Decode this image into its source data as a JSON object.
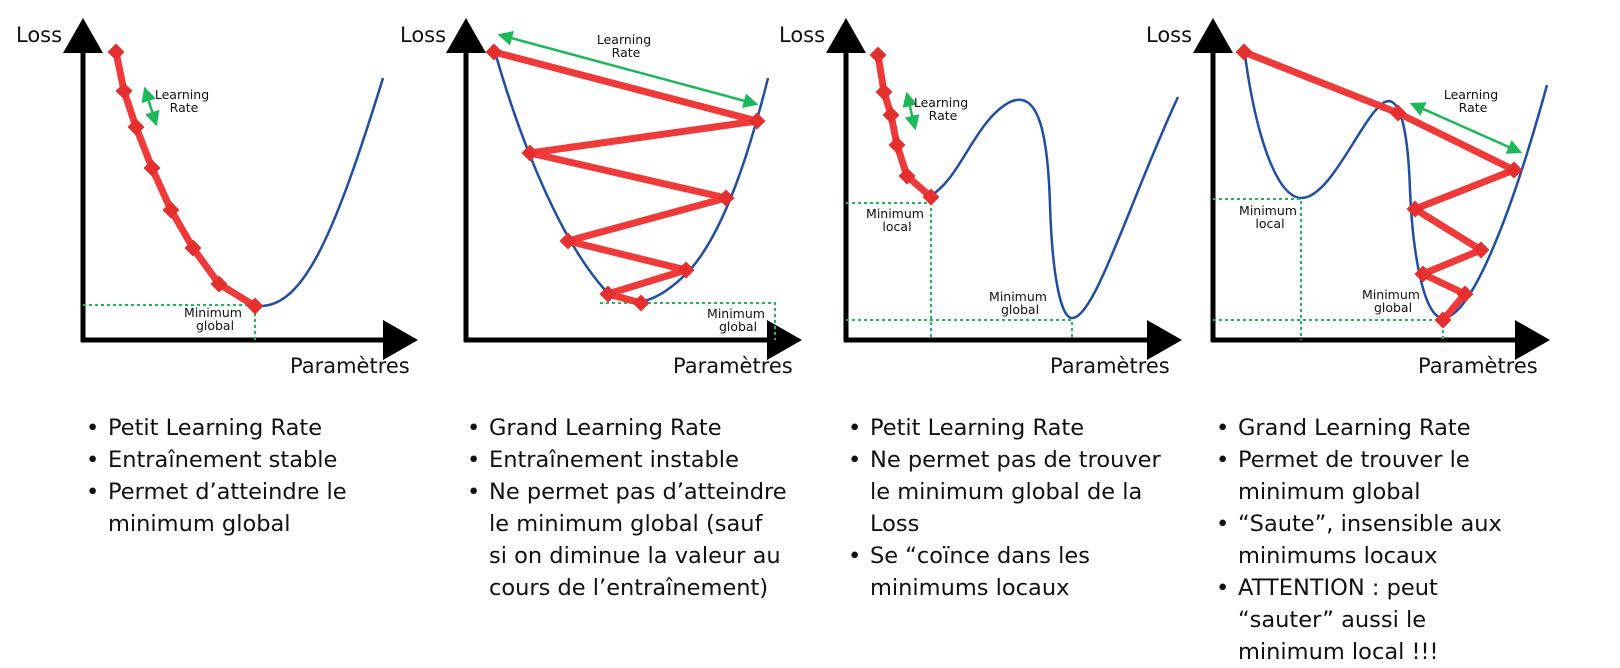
{
  "colors": {
    "axis": "#000000",
    "curve": "#1f4ea3",
    "path": "#f03a3a",
    "marker": "#e52f2f",
    "arrow": "#1cb85a",
    "guide": "#1cb85a"
  },
  "panels": [
    {
      "axis": {
        "y_label": "Loss",
        "x_label": "Paramètres"
      },
      "annotations": {
        "learning_rate": [
          "Learning",
          "Rate"
        ],
        "minimum_global": [
          "Minimum",
          "global"
        ]
      },
      "bullets": [
        "Petit Learning Rate",
        "Entraînement stable",
        "Permet d’atteindre le minimum global"
      ]
    },
    {
      "axis": {
        "y_label": "Loss",
        "x_label": "Paramètres"
      },
      "annotations": {
        "learning_rate": [
          "Learning",
          "Rate"
        ],
        "minimum_global": [
          "Minimum",
          "global"
        ]
      },
      "bullets": [
        "Grand Learning Rate",
        "Entraînement instable",
        "Ne permet pas d’atteindre le minimum global (sauf si on diminue la valeur au cours de l’entraînement)"
      ]
    },
    {
      "axis": {
        "y_label": "Loss",
        "x_label": "Paramètres"
      },
      "annotations": {
        "learning_rate": [
          "Learning",
          "Rate"
        ],
        "minimum_local": [
          "Minimum",
          "local"
        ],
        "minimum_global": [
          "Minimum",
          "global"
        ]
      },
      "bullets": [
        "Petit Learning Rate",
        "Ne permet pas de trouver le minimum global de la Loss",
        "Se “coïnce dans les minimums locaux"
      ]
    },
    {
      "axis": {
        "y_label": "Loss",
        "x_label": "Paramètres"
      },
      "annotations": {
        "learning_rate": [
          "Learning",
          "Rate"
        ],
        "minimum_local": [
          "Minimum",
          "local"
        ],
        "minimum_global": [
          "Minimum",
          "global"
        ]
      },
      "bullets": [
        "Grand Learning Rate",
        "Permet de trouver le minimum global",
        "“Saute”, insensible aux minimums locaux",
        "ATTENTION : peut “sauter” aussi le minimum local !!!"
      ]
    }
  ]
}
